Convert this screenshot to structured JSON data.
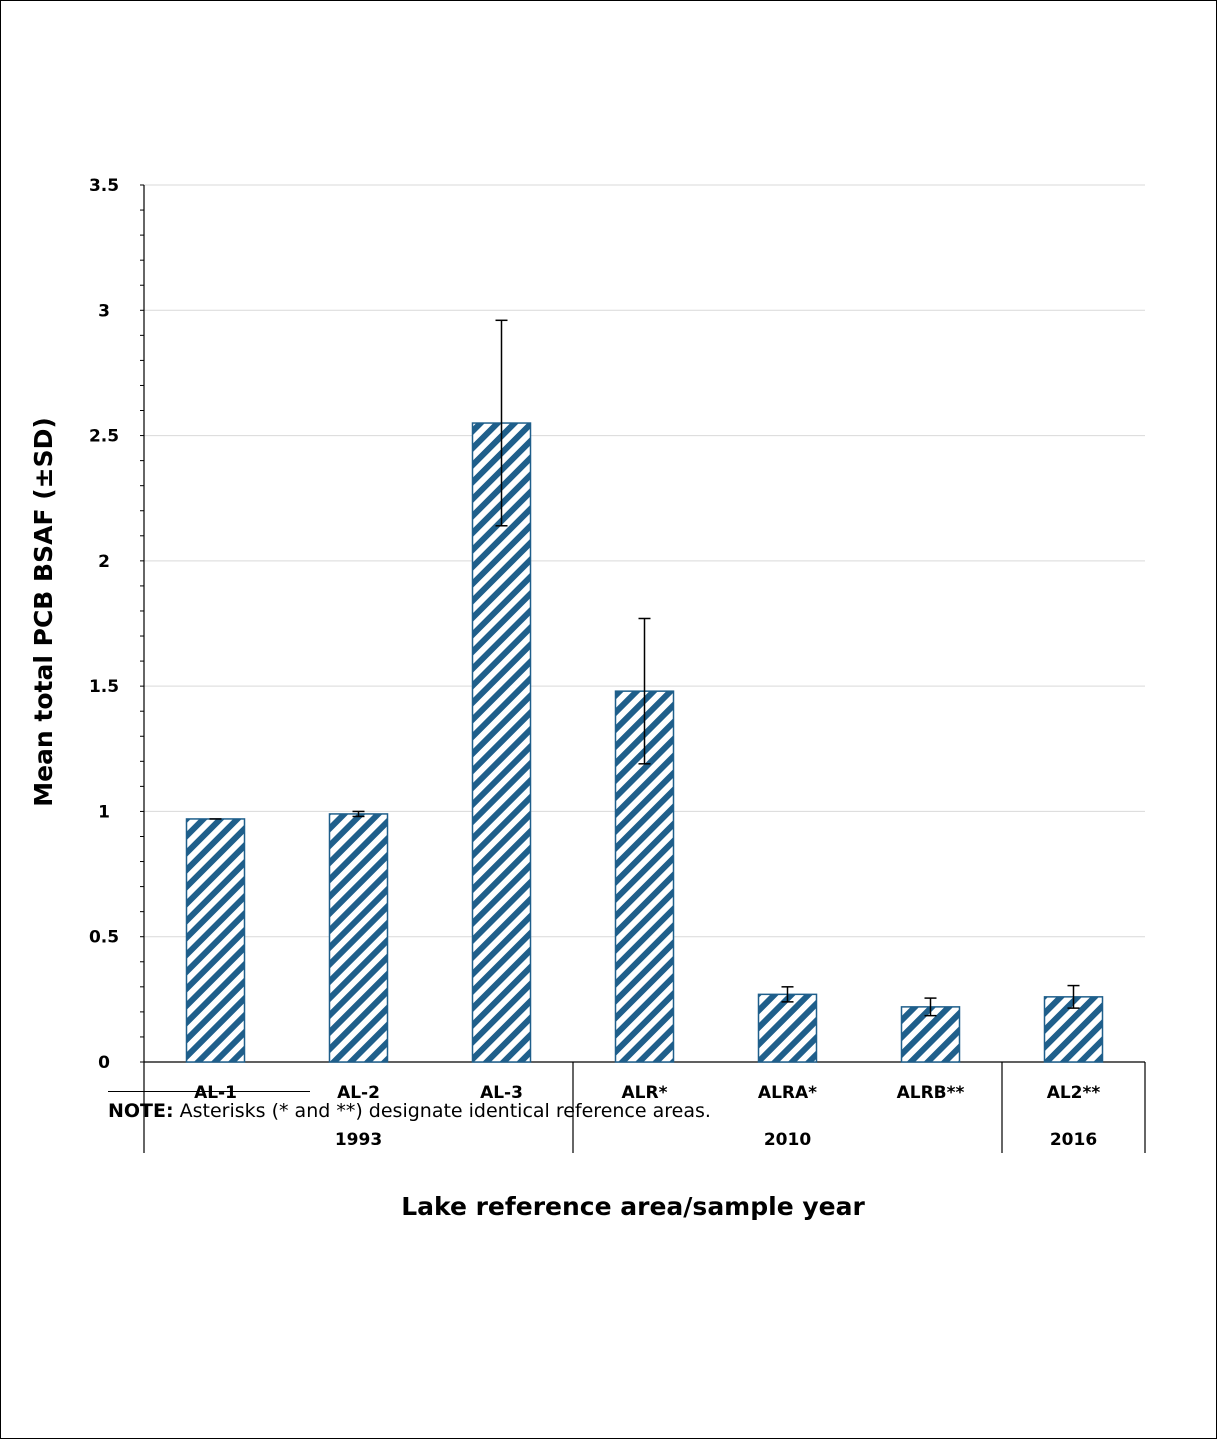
{
  "chart_data": {
    "type": "bar",
    "xlabel": "Lake reference area/sample year",
    "ylabel": "Mean total PCB BSAF (±SD)",
    "ylim": [
      0,
      3.5
    ],
    "yticks": [
      "0",
      "0.5",
      "1",
      "1.5",
      "2",
      "2.5",
      "3",
      "3.5"
    ],
    "grid": true,
    "categories": [
      "AL-1",
      "AL-2",
      "AL-3",
      "ALR*",
      "ALRA*",
      "ALRB**",
      "AL2**"
    ],
    "values": [
      0.97,
      0.99,
      2.55,
      1.48,
      0.27,
      0.22,
      0.26
    ],
    "error": [
      0.0,
      0.01,
      0.41,
      0.29,
      0.03,
      0.035,
      0.045
    ],
    "groups": [
      {
        "label": "1993",
        "count": 3
      },
      {
        "label": "2010",
        "count": 3
      },
      {
        "label": "2016",
        "count": 1
      }
    ],
    "bar_color": "#1f5f8b"
  },
  "footnote": {
    "bold": "NOTE:",
    "text": " Asterisks (* and **) designate identical reference areas."
  }
}
